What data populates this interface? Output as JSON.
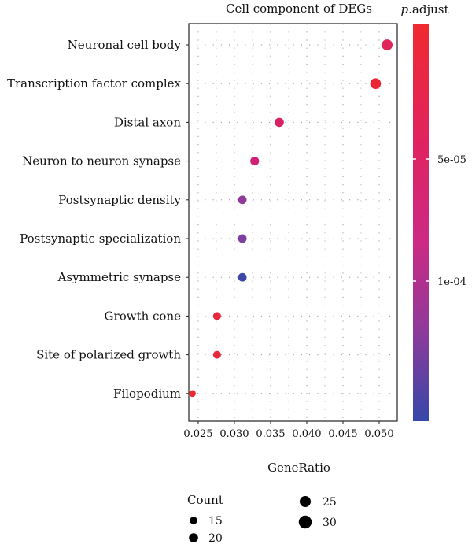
{
  "chart_data": {
    "type": "scatter",
    "title": "Cell component of DEGs",
    "xlabel": "GeneRatio",
    "ylabel": "",
    "xlim": [
      0.0237,
      0.0525
    ],
    "x_ticks": [
      "0.025",
      "0.030",
      "0.035",
      "0.040",
      "0.045",
      "0.050"
    ],
    "x_tick_values": [
      0.025,
      0.03,
      0.035,
      0.04,
      0.045,
      0.05
    ],
    "grid": "dotted",
    "categories": [
      "Neuronal cell body",
      "Transcription factor complex",
      "Distal axon",
      "Neuron to neuron synapse",
      "Postsynaptic density",
      "Postsynaptic specialization",
      "Asymmetric synapse",
      "Growth cone",
      "Site of polarized growth",
      "Filopodium"
    ],
    "points": [
      {
        "term": "Neuronal cell body",
        "gene_ratio": 0.0511,
        "count": 33,
        "color": "#e0255a"
      },
      {
        "term": "Transcription factor complex",
        "gene_ratio": 0.0495,
        "count": 32,
        "color": "#e92635"
      },
      {
        "term": "Distal axon",
        "gene_ratio": 0.0362,
        "count": 23,
        "color": "#d92265"
      },
      {
        "term": "Neuron to neuron synapse",
        "gene_ratio": 0.0328,
        "count": 21,
        "color": "#cf2178"
      },
      {
        "term": "Postsynaptic density",
        "gene_ratio": 0.0311,
        "count": 20,
        "color": "#8e3b9a"
      },
      {
        "term": "Postsynaptic specialization",
        "gene_ratio": 0.0311,
        "count": 20,
        "color": "#7f3fa0"
      },
      {
        "term": "Asymmetric synapse",
        "gene_ratio": 0.0311,
        "count": 20,
        "color": "#3d48a6"
      },
      {
        "term": "Growth cone",
        "gene_ratio": 0.0276,
        "count": 17,
        "color": "#e8293d"
      },
      {
        "term": "Site of polarized growth",
        "gene_ratio": 0.0276,
        "count": 17,
        "color": "#e8293d"
      },
      {
        "term": "Filopodium",
        "gene_ratio": 0.0242,
        "count": 12,
        "color": "#ec2832"
      }
    ],
    "size_legend": {
      "title": "Count",
      "entries": [
        {
          "label": "15",
          "value": 15
        },
        {
          "label": "20",
          "value": 20
        },
        {
          "label": "25",
          "value": 25
        },
        {
          "label": "30",
          "value": 30
        }
      ]
    },
    "color_legend": {
      "title_italic": "p",
      "title_rest": ".adjust",
      "ticks": [
        "5e-05",
        "1e-04"
      ],
      "colors": [
        "#f02a2f",
        "#e02360",
        "#cc2a84",
        "#8c3a9c",
        "#3548a8"
      ]
    }
  }
}
